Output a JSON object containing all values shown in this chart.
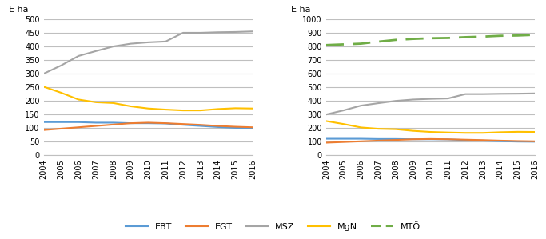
{
  "years": [
    2004,
    2005,
    2006,
    2007,
    2008,
    2009,
    2010,
    2011,
    2012,
    2013,
    2014,
    2015,
    2016
  ],
  "left": {
    "EBT": [
      122,
      122,
      122,
      120,
      120,
      118,
      118,
      117,
      112,
      108,
      104,
      101,
      100
    ],
    "EGT": [
      93,
      98,
      103,
      108,
      113,
      118,
      120,
      118,
      115,
      112,
      108,
      105,
      103
    ],
    "MSZ": [
      300,
      330,
      365,
      383,
      400,
      410,
      415,
      418,
      450,
      450,
      452,
      453,
      455
    ],
    "MgN": [
      252,
      230,
      205,
      195,
      192,
      180,
      172,
      168,
      165,
      165,
      170,
      173,
      172
    ],
    "ylabel": "E ha",
    "ylim": [
      0,
      500
    ],
    "yticks": [
      0,
      50,
      100,
      150,
      200,
      250,
      300,
      350,
      400,
      450,
      500
    ]
  },
  "right": {
    "EBT": [
      122,
      122,
      122,
      120,
      120,
      118,
      118,
      117,
      112,
      108,
      104,
      101,
      100
    ],
    "EGT": [
      93,
      98,
      103,
      108,
      113,
      118,
      120,
      118,
      115,
      112,
      108,
      105,
      103
    ],
    "MSZ": [
      300,
      330,
      365,
      383,
      400,
      410,
      415,
      418,
      450,
      450,
      452,
      453,
      455
    ],
    "MgN": [
      252,
      230,
      205,
      195,
      192,
      180,
      172,
      168,
      165,
      165,
      170,
      173,
      172
    ],
    "MTÖ": [
      810,
      815,
      820,
      835,
      848,
      855,
      860,
      862,
      868,
      872,
      878,
      880,
      885
    ],
    "ylabel": "E ha",
    "ylim": [
      0,
      1000
    ],
    "yticks": [
      0,
      100,
      200,
      300,
      400,
      500,
      600,
      700,
      800,
      900,
      1000
    ]
  },
  "colors": {
    "EBT": "#5B9BD5",
    "EGT": "#ED7D31",
    "MSZ": "#A5A5A5",
    "MgN": "#FFC000",
    "MTÖ": "#70AD47"
  },
  "legend_labels": [
    "EBT",
    "EGT",
    "MSZ",
    "MgN",
    "MTÖ"
  ]
}
